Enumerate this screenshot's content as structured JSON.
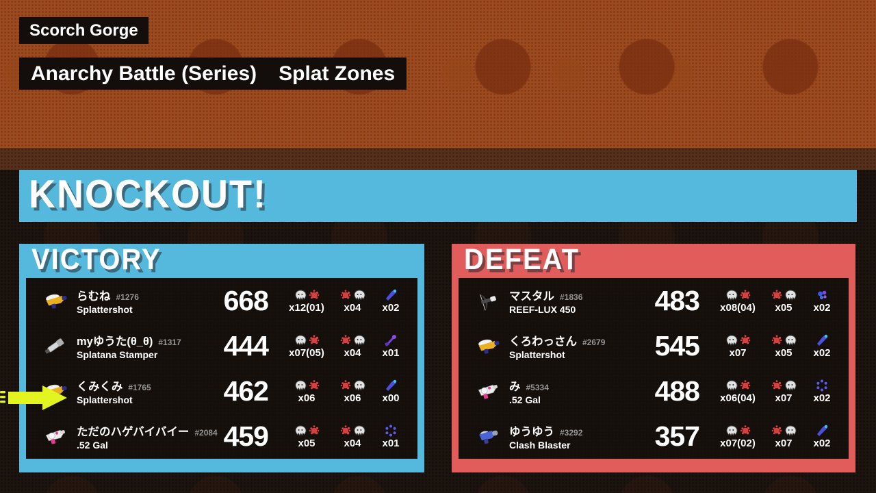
{
  "header": {
    "stage": "Scorch Gorge",
    "mode": "Anarchy Battle (Series)",
    "rule": "Splat Zones"
  },
  "banner": {
    "label": "KNOCKOUT!"
  },
  "teams": [
    {
      "label": "VICTORY",
      "color": "#54b9dc",
      "players": [
        {
          "name": "らむね",
          "tag": "#1276",
          "weapon": "Splattershot",
          "weapon_icon": "splattershot",
          "points": "668",
          "kills": "x12(01)",
          "deaths": "x04",
          "specials": "x02",
          "special_icon": "trizooka"
        },
        {
          "name": "myゆうた(θ_θ)",
          "tag": "#1317",
          "weapon": "Splatana Stamper",
          "weapon_icon": "splatana-stamper",
          "points": "444",
          "kills": "x07(05)",
          "deaths": "x04",
          "specials": "x01",
          "special_icon": "zipcaster"
        },
        {
          "name": "くみくみ",
          "tag": "#1765",
          "weapon": "Splattershot",
          "weapon_icon": "splattershot",
          "points": "462",
          "kills": "x06",
          "deaths": "x06",
          "specials": "x00",
          "special_icon": "trizooka"
        },
        {
          "name": "ただのハゲバイバイー",
          "tag": "#2084",
          "weapon": ".52 Gal",
          "weapon_icon": "gal52",
          "points": "459",
          "kills": "x05",
          "deaths": "x04",
          "specials": "x01",
          "special_icon": "killer-wail"
        }
      ]
    },
    {
      "label": "DEFEAT",
      "color": "#e05d5b",
      "players": [
        {
          "name": "マスタル",
          "tag": "#1836",
          "weapon": "REEF-LUX 450",
          "weapon_icon": "reeflux",
          "points": "483",
          "kills": "x08(04)",
          "deaths": "x05",
          "specials": "x02",
          "special_icon": "tenta-missiles"
        },
        {
          "name": "くろわっさん",
          "tag": "#2679",
          "weapon": "Splattershot",
          "weapon_icon": "splattershot",
          "points": "545",
          "kills": "x07",
          "deaths": "x05",
          "specials": "x02",
          "special_icon": "trizooka"
        },
        {
          "name": "み",
          "tag": "#5334",
          "weapon": ".52 Gal",
          "weapon_icon": "gal52",
          "points": "488",
          "kills": "x06(04)",
          "deaths": "x07",
          "specials": "x02",
          "special_icon": "killer-wail"
        },
        {
          "name": "ゆうゆう",
          "tag": "#3292",
          "weapon": "Clash Blaster",
          "weapon_icon": "clash-blaster",
          "points": "357",
          "kills": "x07(02)",
          "deaths": "x07",
          "specials": "x02",
          "special_icon": "trizooka"
        }
      ]
    }
  ],
  "stat_icons": {
    "kills": "squid-splat-icon",
    "deaths": "splatted-icon",
    "specials": "special-weapon-icon"
  },
  "indicator": {
    "team": 0,
    "row": 2
  },
  "colors": {
    "banner": "#54b9dc",
    "victory": "#54b9dc",
    "defeat": "#e05d5b",
    "arrow": "#e3f520",
    "background_top": "#9d4a1f",
    "background_dark": "#1d1410",
    "panel_interior": "#150f0c"
  }
}
